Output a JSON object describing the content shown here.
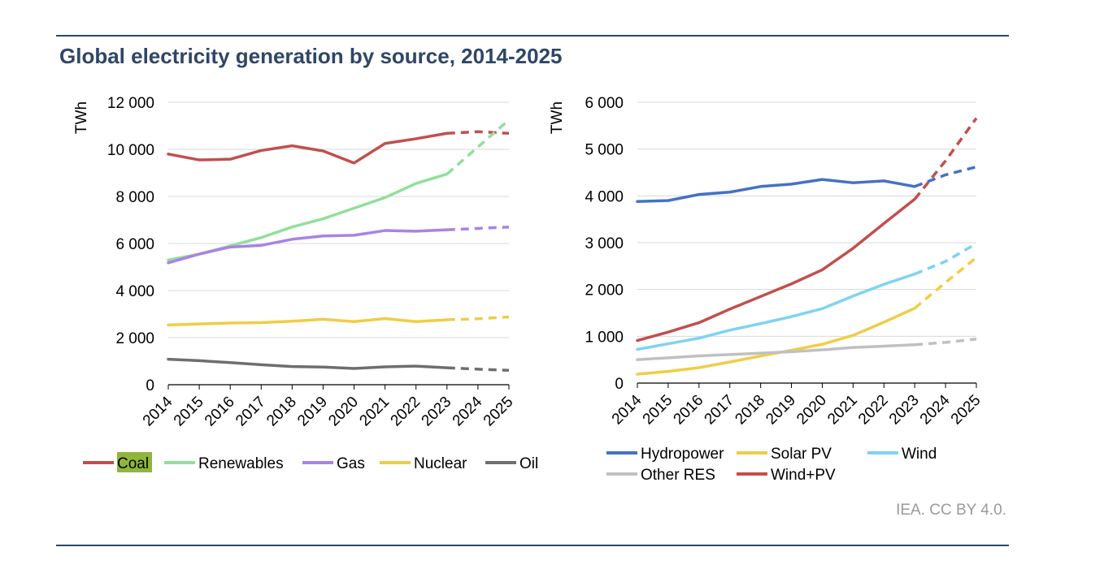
{
  "page": {
    "title": "Global electricity generation by source, 2014-2025",
    "credit": "IEA. CC BY 4.0."
  },
  "chart_data": [
    {
      "type": "line",
      "ylabel": "TWh",
      "ylim": [
        0,
        12000
      ],
      "yticks": [
        0,
        2000,
        4000,
        6000,
        8000,
        10000,
        12000
      ],
      "ytick_labels": [
        "0",
        "2 000",
        "4 000",
        "6 000",
        "8 000",
        "10 000",
        "12 000"
      ],
      "x": [
        "2014",
        "2015",
        "2016",
        "2017",
        "2018",
        "2019",
        "2020",
        "2021",
        "2022",
        "2023",
        "2024",
        "2025"
      ],
      "forecast_from_index": 9,
      "grid": true,
      "legend_position": "bottom",
      "series": [
        {
          "name": "Coal",
          "color": "#c0504d",
          "values": [
            9800,
            9550,
            9580,
            9950,
            10150,
            9930,
            9420,
            10250,
            10450,
            10680,
            10750,
            10680
          ]
        },
        {
          "name": "Renewables",
          "color": "#90e09a",
          "values": [
            5300,
            5550,
            5900,
            6250,
            6700,
            7050,
            7500,
            7950,
            8550,
            8950,
            10100,
            11250
          ]
        },
        {
          "name": "Gas",
          "color": "#a982e6",
          "values": [
            5180,
            5550,
            5850,
            5920,
            6180,
            6320,
            6350,
            6550,
            6520,
            6580,
            6640,
            6700
          ]
        },
        {
          "name": "Nuclear",
          "color": "#efcd46",
          "values": [
            2540,
            2580,
            2620,
            2640,
            2700,
            2780,
            2680,
            2810,
            2680,
            2760,
            2800,
            2880
          ]
        },
        {
          "name": "Oil",
          "color": "#6e6e6e",
          "values": [
            1080,
            1020,
            940,
            850,
            770,
            750,
            690,
            760,
            790,
            720,
            660,
            610
          ]
        }
      ],
      "legend_highlight": "Coal",
      "legend_highlight_color": "#8fb63b"
    },
    {
      "type": "line",
      "ylabel": "TWh",
      "ylim": [
        0,
        6000
      ],
      "yticks": [
        0,
        1000,
        2000,
        3000,
        4000,
        5000,
        6000
      ],
      "ytick_labels": [
        "0",
        "1 000",
        "2 000",
        "3 000",
        "4 000",
        "5 000",
        "6 000"
      ],
      "x": [
        "2014",
        "2015",
        "2016",
        "2017",
        "2018",
        "2019",
        "2020",
        "2021",
        "2022",
        "2023",
        "2024",
        "2025"
      ],
      "forecast_from_index": 9,
      "grid": true,
      "legend_position": "bottom",
      "series": [
        {
          "name": "Hydropower",
          "color": "#4472c4",
          "values": [
            3880,
            3900,
            4030,
            4080,
            4200,
            4250,
            4350,
            4280,
            4320,
            4200,
            4450,
            4620
          ]
        },
        {
          "name": "Solar PV",
          "color": "#efcd46",
          "values": [
            190,
            250,
            330,
            450,
            580,
            700,
            830,
            1020,
            1300,
            1600,
            2150,
            2680
          ]
        },
        {
          "name": "Wind",
          "color": "#7fd3f2",
          "values": [
            720,
            840,
            960,
            1130,
            1270,
            1420,
            1590,
            1860,
            2110,
            2330,
            2600,
            2980
          ]
        },
        {
          "name": "Other RES",
          "color": "#c0c0c0",
          "values": [
            500,
            540,
            580,
            610,
            640,
            670,
            710,
            760,
            790,
            820,
            870,
            940
          ]
        },
        {
          "name": "Wind+PV",
          "color": "#c0504d",
          "values": [
            910,
            1090,
            1290,
            1580,
            1850,
            2120,
            2420,
            2880,
            3410,
            3930,
            4750,
            5660
          ]
        }
      ]
    }
  ]
}
